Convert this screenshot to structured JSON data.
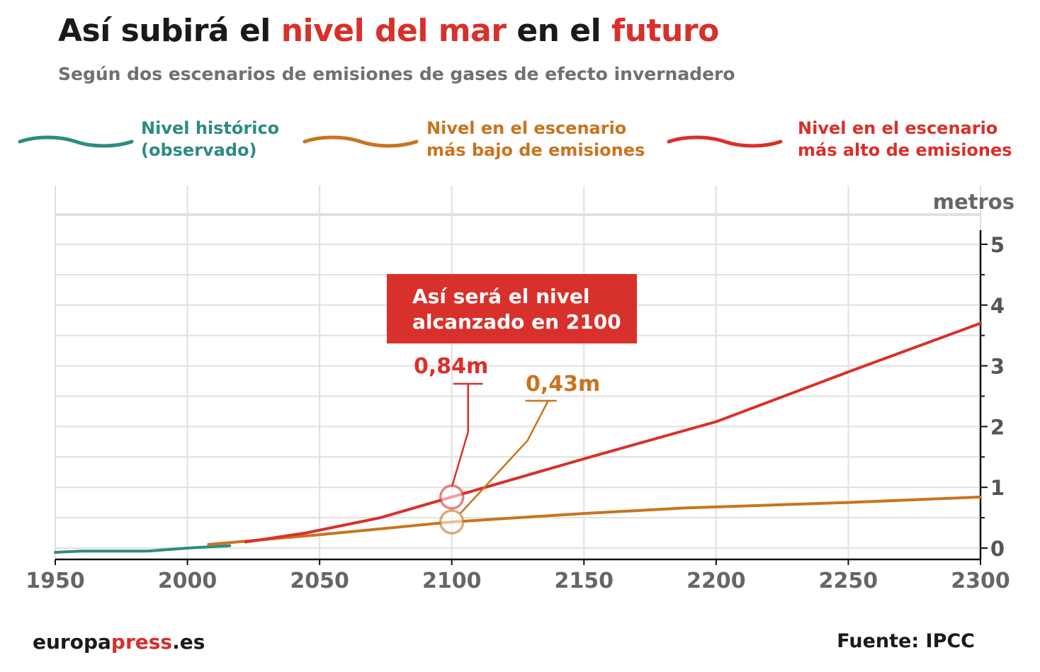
{
  "header": {
    "title_part1": "Así subirá el ",
    "title_part2": "nivel del mar",
    "title_part3": " en el ",
    "title_part4": "futuro",
    "subtitle": "Según dos escenarios de emisiones de gases de efecto invernadero"
  },
  "legend": [
    {
      "line1": "Nivel histórico",
      "line2": "(observado)",
      "color": "#2e8b80"
    },
    {
      "line1": "Nivel en el escenario",
      "line2": "más bajo de emisiones",
      "color": "#c8741e"
    },
    {
      "line1": "Nivel en el escenario",
      "line2": "más alto de emisiones",
      "color": "#d8302a"
    }
  ],
  "annotation": {
    "line1": "Así será el nivel",
    "line2": "alcanzado en 2100",
    "high_value": "0,84m",
    "low_value": "0,43m"
  },
  "footer": {
    "brand_part1": "europa",
    "brand_part2": "press",
    "brand_part3": ".es",
    "source": "Fuente: IPCC"
  },
  "chart_data": {
    "type": "line",
    "ylabel": "metros",
    "xlim": [
      1950,
      2300
    ],
    "ylim": [
      -0.2,
      5.3
    ],
    "x_ticks": [
      1950,
      2000,
      2050,
      2100,
      2150,
      2200,
      2250,
      2300
    ],
    "x_tick_labels": [
      "1950",
      "2000",
      "2050",
      "2100",
      "2150",
      "2200",
      "2250",
      "2300"
    ],
    "y_ticks": [
      0,
      1,
      2,
      3,
      4,
      5
    ],
    "y_tick_labels": [
      "0",
      "1",
      "2",
      "3",
      "4",
      "5"
    ],
    "grid": true,
    "series": [
      {
        "name": "Nivel histórico (observado)",
        "color": "#2e8b80",
        "points": [
          [
            1950,
            -0.07
          ],
          [
            1960,
            -0.05
          ],
          [
            1985,
            -0.05
          ],
          [
            2000,
            0.0
          ],
          [
            2016,
            0.04
          ]
        ]
      },
      {
        "name": "Nivel en el escenario más bajo de emisiones",
        "color": "#c8741e",
        "points": [
          [
            2008,
            0.06
          ],
          [
            2050,
            0.22
          ],
          [
            2100,
            0.43
          ],
          [
            2150,
            0.57
          ],
          [
            2188,
            0.66
          ],
          [
            2250,
            0.75
          ],
          [
            2300,
            0.84
          ]
        ]
      },
      {
        "name": "Nivel en el escenario más alto de emisiones",
        "color": "#d8302a",
        "points": [
          [
            2022,
            0.1
          ],
          [
            2045,
            0.25
          ],
          [
            2073,
            0.5
          ],
          [
            2100,
            0.84
          ],
          [
            2150,
            1.47
          ],
          [
            2200,
            2.08
          ],
          [
            2250,
            2.9
          ],
          [
            2300,
            3.7
          ]
        ]
      }
    ],
    "highlights": [
      {
        "x": 2100,
        "y": 0.84,
        "color": "#d8302a"
      },
      {
        "x": 2100,
        "y": 0.43,
        "color": "#c8741e"
      }
    ]
  }
}
